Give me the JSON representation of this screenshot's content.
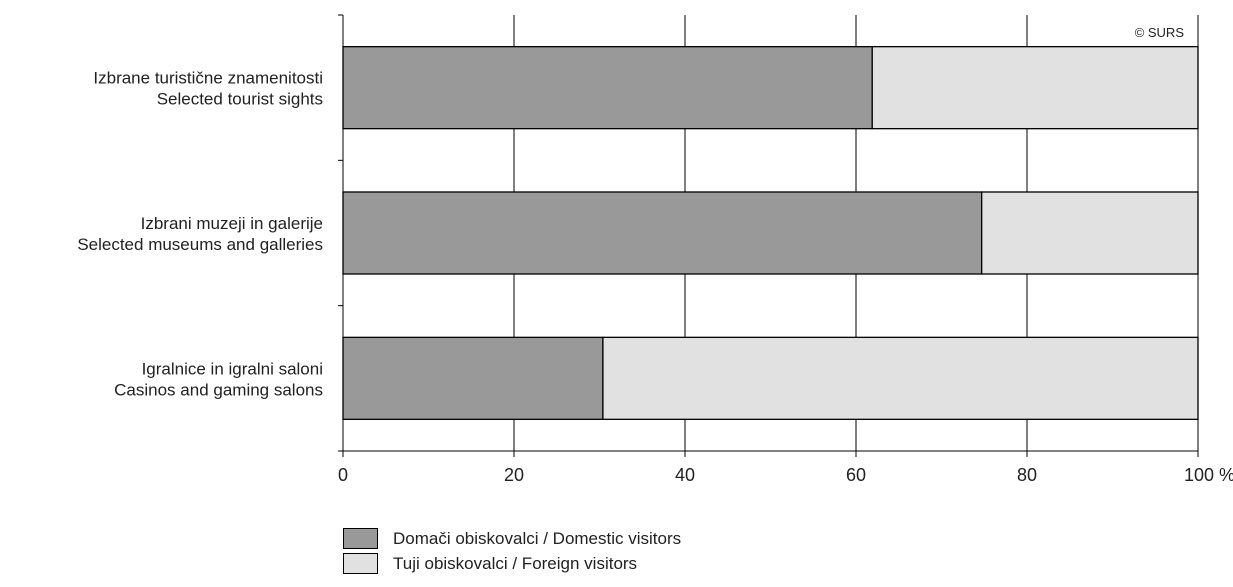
{
  "chart_data": {
    "type": "bar",
    "orientation": "horizontal",
    "stacked": true,
    "categories": [
      [
        "Izbrane turistične znamenitosti",
        "Selected tourist sights"
      ],
      [
        "Izbrani muzeji in galerije",
        "Selected museums and galleries"
      ],
      [
        "Igralnice in igralni saloni",
        "Casinos and gaming salons"
      ]
    ],
    "series": [
      {
        "name": "Domači obiskovalci / Domestic visitors",
        "values": [
          61.9,
          74.7,
          30.4
        ],
        "color": "#999999"
      },
      {
        "name": "Tuji obiskovalci / Foreign visitors",
        "values": [
          38.1,
          25.3,
          69.6
        ],
        "color": "#e1e1e1"
      }
    ],
    "xlim": [
      0,
      100
    ],
    "xticks": [
      "0",
      "20",
      "40",
      "60",
      "80",
      "100 %"
    ],
    "grid": true,
    "copyright": "© SURS",
    "legend_position": "bottom-left"
  }
}
